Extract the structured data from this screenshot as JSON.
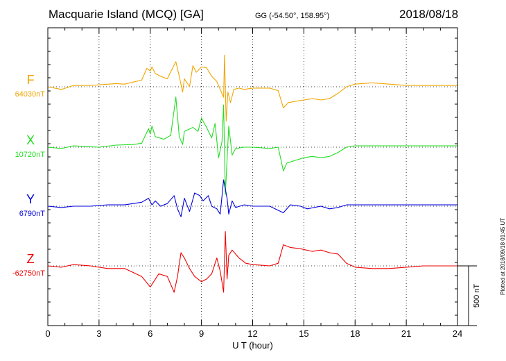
{
  "header": {
    "station": "Macquarie Island (MCQ)  [GA]",
    "coords": "GG (-54.50°, 158.95°)",
    "date": "2018/08/18"
  },
  "footer_note": "Plotted at 2018/09/18 01:45 UT",
  "scale_label": "500 nT",
  "chart_data": {
    "type": "line",
    "xlabel": "U T (hour)",
    "xlim": [
      0,
      24
    ],
    "xticks": [
      0,
      3,
      6,
      9,
      12,
      15,
      18,
      21,
      24
    ],
    "grid": true,
    "scale_bar_nT": 500,
    "series": [
      {
        "name": "F",
        "baseline_label": "64030nT",
        "color": "#f0a500",
        "baseline_nT": 64030,
        "points": [
          [
            0.0,
            0
          ],
          [
            0.8,
            -10
          ],
          [
            1.5,
            5
          ],
          [
            2.5,
            5
          ],
          [
            4.0,
            12
          ],
          [
            4.5,
            10
          ],
          [
            5.0,
            18
          ],
          [
            5.5,
            25
          ],
          [
            5.8,
            70
          ],
          [
            6.0,
            60
          ],
          [
            6.1,
            75
          ],
          [
            6.3,
            50
          ],
          [
            6.6,
            40
          ],
          [
            7.0,
            30
          ],
          [
            7.3,
            70
          ],
          [
            7.5,
            95
          ],
          [
            7.7,
            40
          ],
          [
            7.9,
            -20
          ],
          [
            8.0,
            30
          ],
          [
            8.3,
            0
          ],
          [
            8.5,
            80
          ],
          [
            8.7,
            55
          ],
          [
            9.0,
            75
          ],
          [
            9.3,
            72
          ],
          [
            9.6,
            40
          ],
          [
            9.9,
            20
          ],
          [
            10.1,
            -10
          ],
          [
            10.3,
            -40
          ],
          [
            10.35,
            120
          ],
          [
            10.45,
            -130
          ],
          [
            10.55,
            -20
          ],
          [
            10.7,
            -60
          ],
          [
            10.9,
            -10
          ],
          [
            11.2,
            -5
          ],
          [
            11.5,
            -10
          ],
          [
            12.0,
            -5
          ],
          [
            13.0,
            -5
          ],
          [
            13.5,
            -15
          ],
          [
            13.8,
            -80
          ],
          [
            14.1,
            -60
          ],
          [
            14.5,
            -55
          ],
          [
            15.0,
            -50
          ],
          [
            15.5,
            -45
          ],
          [
            16.0,
            -50
          ],
          [
            16.5,
            -45
          ],
          [
            17.0,
            -25
          ],
          [
            17.5,
            0
          ],
          [
            18.0,
            10
          ],
          [
            19.0,
            15
          ],
          [
            20.0,
            10
          ],
          [
            21.0,
            5
          ],
          [
            22.0,
            5
          ],
          [
            23.0,
            5
          ],
          [
            24.0,
            5
          ]
        ]
      },
      {
        "name": "X",
        "baseline_label": "10720nT",
        "color": "#22dd22",
        "baseline_nT": 10720,
        "points": [
          [
            0.0,
            0
          ],
          [
            0.8,
            -5
          ],
          [
            1.5,
            5
          ],
          [
            3.0,
            0
          ],
          [
            4.0,
            8
          ],
          [
            5.0,
            10
          ],
          [
            5.5,
            15
          ],
          [
            5.9,
            70
          ],
          [
            6.0,
            50
          ],
          [
            6.1,
            80
          ],
          [
            6.3,
            40
          ],
          [
            6.8,
            30
          ],
          [
            7.2,
            45
          ],
          [
            7.5,
            190
          ],
          [
            7.7,
            40
          ],
          [
            7.9,
            10
          ],
          [
            8.0,
            60
          ],
          [
            8.5,
            75
          ],
          [
            8.8,
            60
          ],
          [
            9.0,
            110
          ],
          [
            9.3,
            75
          ],
          [
            9.6,
            35
          ],
          [
            9.8,
            90
          ],
          [
            10.0,
            -40
          ],
          [
            10.2,
            20
          ],
          [
            10.3,
            160
          ],
          [
            10.4,
            -180
          ],
          [
            10.6,
            80
          ],
          [
            10.8,
            -30
          ],
          [
            11.0,
            -5
          ],
          [
            11.5,
            0
          ],
          [
            12.0,
            0
          ],
          [
            13.0,
            -5
          ],
          [
            13.5,
            0
          ],
          [
            13.8,
            -90
          ],
          [
            14.0,
            -60
          ],
          [
            14.5,
            -50
          ],
          [
            15.0,
            -40
          ],
          [
            15.5,
            -35
          ],
          [
            16.0,
            -40
          ],
          [
            16.5,
            -35
          ],
          [
            17.0,
            -20
          ],
          [
            17.5,
            0
          ],
          [
            18.0,
            5
          ],
          [
            19.0,
            5
          ],
          [
            20.0,
            5
          ],
          [
            21.0,
            5
          ],
          [
            22.0,
            5
          ],
          [
            23.0,
            5
          ],
          [
            24.0,
            5
          ]
        ]
      },
      {
        "name": "Y",
        "baseline_label": "6790nT",
        "color": "#0000dd",
        "baseline_nT": 6790,
        "points": [
          [
            0.0,
            0
          ],
          [
            0.8,
            -5
          ],
          [
            1.5,
            0
          ],
          [
            2.5,
            0
          ],
          [
            3.5,
            5
          ],
          [
            4.5,
            5
          ],
          [
            5.5,
            15
          ],
          [
            5.9,
            30
          ],
          [
            6.1,
            5
          ],
          [
            6.3,
            20
          ],
          [
            6.6,
            0
          ],
          [
            7.0,
            10
          ],
          [
            7.4,
            40
          ],
          [
            7.6,
            -10
          ],
          [
            7.8,
            -40
          ],
          [
            8.0,
            30
          ],
          [
            8.3,
            -20
          ],
          [
            8.6,
            50
          ],
          [
            8.9,
            40
          ],
          [
            9.1,
            20
          ],
          [
            9.4,
            40
          ],
          [
            9.6,
            0
          ],
          [
            9.9,
            -10
          ],
          [
            10.1,
            -30
          ],
          [
            10.3,
            100
          ],
          [
            10.5,
            30
          ],
          [
            10.6,
            -30
          ],
          [
            10.8,
            20
          ],
          [
            11.0,
            -5
          ],
          [
            11.5,
            5
          ],
          [
            12.0,
            0
          ],
          [
            13.0,
            0
          ],
          [
            13.8,
            -25
          ],
          [
            14.2,
            5
          ],
          [
            14.8,
            0
          ],
          [
            15.2,
            -10
          ],
          [
            16.0,
            0
          ],
          [
            16.5,
            -10
          ],
          [
            17.0,
            -5
          ],
          [
            17.5,
            5
          ],
          [
            18.0,
            5
          ],
          [
            19.0,
            5
          ],
          [
            20.0,
            5
          ],
          [
            21.0,
            5
          ],
          [
            22.0,
            5
          ],
          [
            23.0,
            5
          ],
          [
            24.0,
            5
          ]
        ]
      },
      {
        "name": "Z",
        "baseline_label": "-62750nT",
        "color": "#ee0000",
        "baseline_nT": -62750,
        "points": [
          [
            0.0,
            0
          ],
          [
            0.8,
            -5
          ],
          [
            1.5,
            5
          ],
          [
            2.5,
            0
          ],
          [
            3.5,
            -10
          ],
          [
            4.5,
            -10
          ],
          [
            5.0,
            -25
          ],
          [
            5.5,
            -40
          ],
          [
            6.0,
            -80
          ],
          [
            6.2,
            -60
          ],
          [
            6.5,
            -30
          ],
          [
            7.0,
            -40
          ],
          [
            7.4,
            -100
          ],
          [
            7.6,
            -40
          ],
          [
            7.8,
            50
          ],
          [
            8.0,
            30
          ],
          [
            8.3,
            -10
          ],
          [
            8.6,
            -40
          ],
          [
            9.0,
            -60
          ],
          [
            9.3,
            -50
          ],
          [
            9.6,
            -30
          ],
          [
            9.9,
            30
          ],
          [
            10.1,
            -20
          ],
          [
            10.3,
            -100
          ],
          [
            10.4,
            130
          ],
          [
            10.5,
            -50
          ],
          [
            10.6,
            40
          ],
          [
            10.8,
            60
          ],
          [
            11.2,
            30
          ],
          [
            11.6,
            10
          ],
          [
            12.0,
            5
          ],
          [
            13.0,
            0
          ],
          [
            13.5,
            10
          ],
          [
            13.8,
            80
          ],
          [
            14.2,
            70
          ],
          [
            14.8,
            65
          ],
          [
            15.5,
            55
          ],
          [
            16.0,
            60
          ],
          [
            16.5,
            50
          ],
          [
            17.0,
            45
          ],
          [
            17.5,
            10
          ],
          [
            18.0,
            -5
          ],
          [
            19.0,
            -10
          ],
          [
            20.0,
            -10
          ],
          [
            21.0,
            -5
          ],
          [
            22.0,
            0
          ],
          [
            23.0,
            0
          ],
          [
            24.0,
            0
          ]
        ]
      }
    ]
  }
}
